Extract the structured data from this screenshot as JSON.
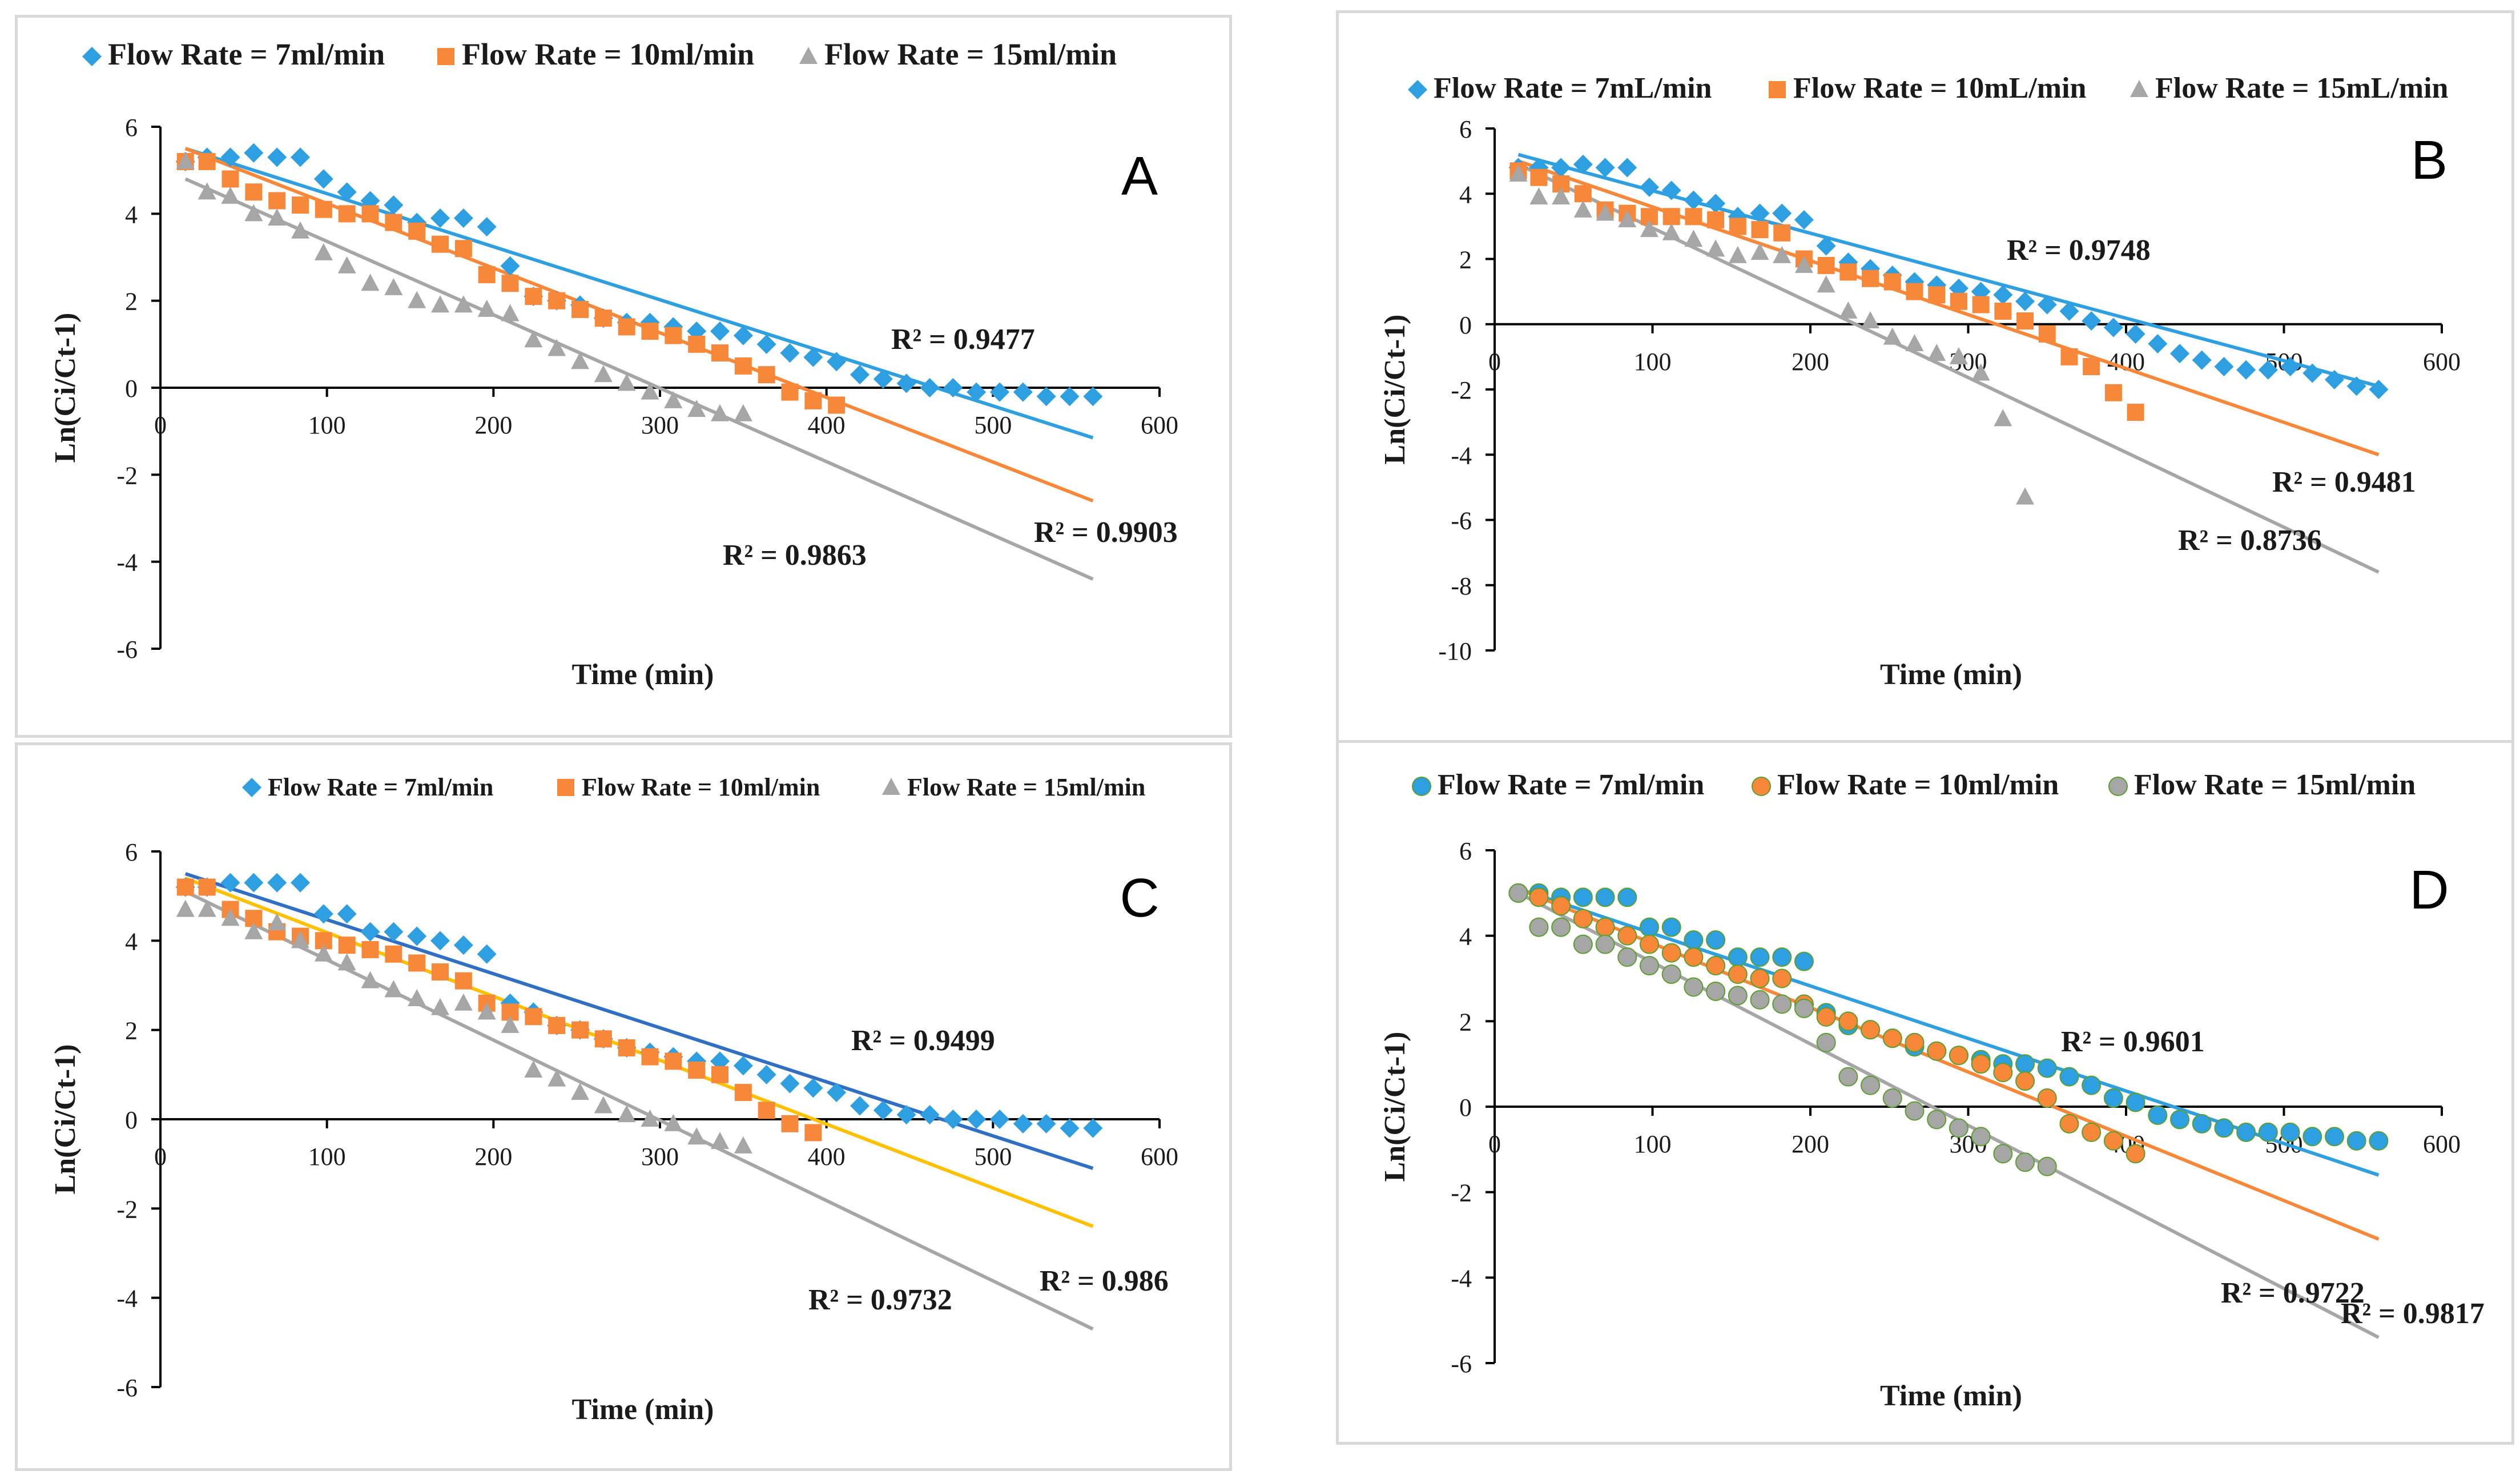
{
  "chart_data": [
    {
      "type": "scatter",
      "panel_label": "A",
      "legend_position": "top",
      "xlabel": "Time (min)",
      "ylabel": "Ln(Ci/Ct-1)",
      "xlim": [
        0,
        600
      ],
      "ylim": [
        -6,
        6
      ],
      "xticks": [
        0,
        100,
        200,
        300,
        400,
        500,
        600
      ],
      "yticks": [
        -6,
        -4,
        -2,
        0,
        2,
        4,
        6
      ],
      "tick_labels_x": [
        "0",
        "100",
        "200",
        "300",
        "400",
        "500",
        "600"
      ],
      "tick_labels_y": [
        "-6",
        "-4",
        "-2",
        "0",
        "2",
        "4",
        "6"
      ],
      "series": [
        {
          "name": "Flow Rate = 7ml/min",
          "marker": "diamond",
          "color": "#2e9fe0",
          "x": [
            15,
            28,
            42,
            56,
            70,
            84,
            98,
            112,
            126,
            140,
            154,
            168,
            182,
            196,
            210,
            224,
            238,
            252,
            266,
            280,
            294,
            308,
            322,
            336,
            350,
            364,
            378,
            392,
            406,
            420,
            434,
            448,
            462,
            476,
            490,
            504,
            518,
            532,
            546,
            560
          ],
          "y": [
            5.2,
            5.3,
            5.3,
            5.4,
            5.3,
            5.3,
            4.8,
            4.5,
            4.3,
            4.2,
            3.8,
            3.9,
            3.9,
            3.7,
            2.8,
            2.1,
            2.0,
            1.9,
            1.6,
            1.5,
            1.5,
            1.4,
            1.3,
            1.3,
            1.2,
            1.0,
            0.8,
            0.7,
            0.6,
            0.3,
            0.2,
            0.1,
            0.0,
            0.0,
            -0.1,
            -0.1,
            -0.1,
            -0.2,
            -0.2,
            -0.2
          ],
          "fit": [
            5.5,
            -1.15
          ],
          "r2_label": "R² = 0.9477"
        },
        {
          "name": "Flow Rate = 10ml/min",
          "marker": "square",
          "color": "#f7883a",
          "x": [
            15,
            28,
            42,
            56,
            70,
            84,
            98,
            112,
            126,
            140,
            154,
            168,
            182,
            196,
            210,
            224,
            238,
            252,
            266,
            280,
            294,
            308,
            322,
            336,
            350,
            364,
            378,
            392,
            406
          ],
          "y": [
            5.2,
            5.2,
            4.8,
            4.5,
            4.3,
            4.2,
            4.1,
            4.0,
            4.0,
            3.8,
            3.6,
            3.3,
            3.2,
            2.6,
            2.4,
            2.1,
            2.0,
            1.8,
            1.6,
            1.4,
            1.3,
            1.2,
            1.0,
            0.8,
            0.5,
            0.3,
            -0.1,
            -0.3,
            -0.4
          ],
          "fit": [
            5.5,
            -2.6
          ],
          "r2_label": "R² = 0.9903"
        },
        {
          "name": "Flow Rate = 15ml/min",
          "marker": "triangle",
          "color": "#a6a6a6",
          "x": [
            15,
            28,
            42,
            56,
            70,
            84,
            98,
            112,
            126,
            140,
            154,
            168,
            182,
            196,
            210,
            224,
            238,
            252,
            266,
            280,
            294,
            308,
            322,
            336,
            350
          ],
          "y": [
            5.2,
            4.5,
            4.4,
            4.0,
            3.9,
            3.6,
            3.1,
            2.8,
            2.4,
            2.3,
            2.0,
            1.9,
            1.9,
            1.8,
            1.7,
            1.1,
            0.9,
            0.6,
            0.3,
            0.1,
            -0.1,
            -0.3,
            -0.5,
            -0.6,
            -0.6
          ],
          "fit": [
            4.8,
            -4.4
          ],
          "r2_label": "R² = 0.9863"
        }
      ]
    },
    {
      "type": "scatter",
      "panel_label": "B",
      "legend_position": "top",
      "xlabel": "Time (min)",
      "ylabel": "Ln(Ci/Ct-1)",
      "xlim": [
        0,
        600
      ],
      "ylim": [
        -10,
        6
      ],
      "xticks": [
        0,
        100,
        200,
        300,
        400,
        500,
        600
      ],
      "yticks": [
        -10,
        -8,
        -6,
        -4,
        -2,
        0,
        2,
        4,
        6
      ],
      "tick_labels_x": [
        "0",
        "100",
        "200",
        "300",
        "400",
        "500",
        "600"
      ],
      "tick_labels_y": [
        "-10",
        "-8",
        "-6",
        "-4",
        "-2",
        "0",
        "2",
        "4",
        "6"
      ],
      "series": [
        {
          "name": "Flow Rate = 7mL/min",
          "marker": "diamond",
          "color": "#2e9fe0",
          "x": [
            15,
            28,
            42,
            56,
            70,
            84,
            98,
            112,
            126,
            140,
            154,
            168,
            182,
            196,
            210,
            224,
            238,
            252,
            266,
            280,
            294,
            308,
            322,
            336,
            350,
            364,
            378,
            392,
            406,
            420,
            434,
            448,
            462,
            476,
            490,
            504,
            518,
            532,
            546,
            560
          ],
          "y": [
            4.8,
            4.8,
            4.8,
            4.9,
            4.8,
            4.8,
            4.2,
            4.1,
            3.8,
            3.7,
            3.3,
            3.4,
            3.4,
            3.2,
            2.4,
            1.9,
            1.7,
            1.5,
            1.3,
            1.2,
            1.1,
            1.0,
            0.9,
            0.7,
            0.6,
            0.4,
            0.1,
            -0.1,
            -0.3,
            -0.6,
            -0.9,
            -1.1,
            -1.3,
            -1.4,
            -1.4,
            -1.3,
            -1.5,
            -1.7,
            -1.9,
            -2.0
          ],
          "fit": [
            5.2,
            -1.9
          ],
          "r2_label": "R² = 0.9748"
        },
        {
          "name": "Flow Rate = 10mL/min",
          "marker": "square",
          "color": "#f7883a",
          "x": [
            15,
            28,
            42,
            56,
            70,
            84,
            98,
            112,
            126,
            140,
            154,
            168,
            182,
            196,
            210,
            224,
            238,
            252,
            266,
            280,
            294,
            308,
            322,
            336,
            350,
            364,
            378,
            392,
            406
          ],
          "y": [
            4.7,
            4.5,
            4.3,
            4.0,
            3.5,
            3.4,
            3.3,
            3.3,
            3.3,
            3.2,
            3.0,
            2.9,
            2.8,
            2.0,
            1.8,
            1.6,
            1.4,
            1.3,
            1.0,
            0.9,
            0.7,
            0.6,
            0.4,
            0.1,
            -0.3,
            -1.0,
            -1.3,
            -2.1,
            -2.7
          ],
          "fit": [
            5.0,
            -4.0
          ],
          "r2_label": "R² = 0.9481"
        },
        {
          "name": "Flow Rate = 15mL/min",
          "marker": "triangle",
          "color": "#a6a6a6",
          "x": [
            15,
            28,
            42,
            56,
            70,
            84,
            98,
            112,
            126,
            140,
            154,
            168,
            182,
            196,
            210,
            224,
            238,
            252,
            266,
            280,
            294,
            308,
            322,
            336
          ],
          "y": [
            4.6,
            3.9,
            3.9,
            3.5,
            3.4,
            3.2,
            2.9,
            2.8,
            2.6,
            2.3,
            2.1,
            2.2,
            2.1,
            1.8,
            1.2,
            0.4,
            0.1,
            -0.4,
            -0.6,
            -0.9,
            -1.0,
            -1.5,
            -2.9,
            -5.3
          ],
          "fit": [
            4.9,
            -7.6
          ],
          "r2_label": "R² = 0.8736"
        }
      ]
    },
    {
      "type": "scatter",
      "panel_label": "C",
      "legend_position": "top",
      "xlabel": "Time (min)",
      "ylabel": "Ln(Ci/Ct-1)",
      "xlim": [
        0,
        600
      ],
      "ylim": [
        -6,
        6
      ],
      "xticks": [
        0,
        100,
        200,
        300,
        400,
        500,
        600
      ],
      "yticks": [
        -6,
        -4,
        -2,
        0,
        2,
        4,
        6
      ],
      "tick_labels_x": [
        "0",
        "100",
        "200",
        "300",
        "400",
        "500",
        "600"
      ],
      "tick_labels_y": [
        "-6",
        "-4",
        "-2",
        "0",
        "2",
        "4",
        "6"
      ],
      "series": [
        {
          "name": "Flow Rate = 7ml/min",
          "marker": "diamond",
          "color": "#2e9fe0",
          "fit_color": "#2f6fc4",
          "x": [
            15,
            28,
            42,
            56,
            70,
            84,
            98,
            112,
            126,
            140,
            154,
            168,
            182,
            196,
            210,
            224,
            238,
            252,
            266,
            280,
            294,
            308,
            322,
            336,
            350,
            364,
            378,
            392,
            406,
            420,
            434,
            448,
            462,
            476,
            490,
            504,
            518,
            532,
            546,
            560
          ],
          "y": [
            5.2,
            5.2,
            5.3,
            5.3,
            5.3,
            5.3,
            4.6,
            4.6,
            4.2,
            4.2,
            4.1,
            4.0,
            3.9,
            3.7,
            2.6,
            2.4,
            2.1,
            2.0,
            1.8,
            1.6,
            1.5,
            1.4,
            1.3,
            1.3,
            1.2,
            1.0,
            0.8,
            0.7,
            0.6,
            0.3,
            0.2,
            0.1,
            0.1,
            0.0,
            0.0,
            0.0,
            -0.1,
            -0.1,
            -0.2,
            -0.2
          ],
          "fit": [
            5.5,
            -1.1
          ],
          "r2_label": "R² = 0.9499"
        },
        {
          "name": "Flow Rate = 10ml/min",
          "marker": "square",
          "color": "#f7883a",
          "fit_color": "#ffc000",
          "x": [
            15,
            28,
            42,
            56,
            70,
            84,
            98,
            112,
            126,
            140,
            154,
            168,
            182,
            196,
            210,
            224,
            238,
            252,
            266,
            280,
            294,
            308,
            322,
            336,
            350,
            364,
            378,
            392
          ],
          "y": [
            5.2,
            5.2,
            4.7,
            4.5,
            4.2,
            4.1,
            4.0,
            3.9,
            3.8,
            3.7,
            3.5,
            3.3,
            3.1,
            2.6,
            2.4,
            2.3,
            2.1,
            2.0,
            1.8,
            1.6,
            1.4,
            1.3,
            1.1,
            1.0,
            0.6,
            0.2,
            -0.1,
            -0.3
          ],
          "fit": [
            5.4,
            -2.4
          ],
          "r2_label": "R² = 0.986"
        },
        {
          "name": "Flow Rate = 15ml/min",
          "marker": "triangle",
          "color": "#a6a6a6",
          "x": [
            15,
            28,
            42,
            56,
            70,
            84,
            98,
            112,
            126,
            140,
            154,
            168,
            182,
            196,
            210,
            224,
            238,
            252,
            266,
            280,
            294,
            308,
            322,
            336,
            350
          ],
          "y": [
            4.7,
            4.7,
            4.5,
            4.2,
            4.4,
            4.0,
            3.7,
            3.5,
            3.1,
            2.9,
            2.7,
            2.5,
            2.6,
            2.4,
            2.1,
            1.1,
            0.9,
            0.6,
            0.3,
            0.1,
            0.0,
            -0.1,
            -0.4,
            -0.5,
            -0.6
          ],
          "fit": [
            5.1,
            -4.7
          ],
          "r2_label": "R² = 0.9732"
        }
      ]
    },
    {
      "type": "scatter",
      "panel_label": "D",
      "legend_position": "top",
      "xlabel": "Time (min)",
      "ylabel": "Ln(Ci/Ct-1)",
      "xlim": [
        0,
        600
      ],
      "ylim": [
        -6,
        6
      ],
      "xticks": [
        0,
        100,
        200,
        300,
        400,
        500,
        600
      ],
      "yticks": [
        -6,
        -4,
        -2,
        0,
        2,
        4,
        6
      ],
      "tick_labels_x": [
        "0",
        "100",
        "200",
        "300",
        "400",
        "500",
        "600"
      ],
      "tick_labels_y": [
        "-6",
        "-4",
        "-2",
        "0",
        "2",
        "4",
        "6"
      ],
      "series": [
        {
          "name": "Flow Rate = 7ml/min",
          "marker": "circle",
          "color": "#2e9fe0",
          "x": [
            15,
            28,
            42,
            56,
            70,
            84,
            98,
            112,
            126,
            140,
            154,
            168,
            182,
            196,
            210,
            224,
            238,
            252,
            266,
            280,
            294,
            308,
            322,
            336,
            350,
            364,
            378,
            392,
            406,
            420,
            434,
            448,
            462,
            476,
            490,
            504,
            518,
            532,
            546,
            560
          ],
          "y": [
            5.0,
            5.0,
            4.9,
            4.9,
            4.9,
            4.9,
            4.2,
            4.2,
            3.9,
            3.9,
            3.5,
            3.5,
            3.5,
            3.4,
            2.2,
            1.9,
            1.8,
            1.6,
            1.4,
            1.3,
            1.2,
            1.1,
            1.0,
            1.0,
            0.9,
            0.7,
            0.5,
            0.2,
            0.1,
            -0.2,
            -0.3,
            -0.4,
            -0.5,
            -0.6,
            -0.6,
            -0.6,
            -0.7,
            -0.7,
            -0.8,
            -0.8
          ],
          "fit": [
            5.1,
            -1.6
          ],
          "r2_label": "R² = 0.9601"
        },
        {
          "name": "Flow Rate = 10ml/min",
          "marker": "circle",
          "color": "#f7883a",
          "x": [
            15,
            28,
            42,
            56,
            70,
            84,
            98,
            112,
            126,
            140,
            154,
            168,
            182,
            196,
            210,
            224,
            238,
            252,
            266,
            280,
            294,
            308,
            322,
            336,
            350,
            364,
            378,
            392,
            406
          ],
          "y": [
            5.0,
            4.9,
            4.7,
            4.4,
            4.2,
            4.0,
            3.8,
            3.6,
            3.5,
            3.3,
            3.1,
            3.0,
            3.0,
            2.4,
            2.1,
            2.0,
            1.8,
            1.6,
            1.5,
            1.3,
            1.2,
            1.0,
            0.8,
            0.6,
            0.2,
            -0.4,
            -0.6,
            -0.8,
            -1.1
          ],
          "fit": [
            5.1,
            -3.1
          ],
          "r2_label": "R² = 0.9817"
        },
        {
          "name": "Flow Rate = 15ml/min",
          "marker": "circle",
          "color": "#a6a6a6",
          "x": [
            15,
            28,
            42,
            56,
            70,
            84,
            98,
            112,
            126,
            140,
            154,
            168,
            182,
            196,
            210,
            224,
            238,
            252,
            266,
            280,
            294,
            308,
            322,
            336,
            350
          ],
          "y": [
            5.0,
            4.2,
            4.2,
            3.8,
            3.8,
            3.5,
            3.3,
            3.1,
            2.8,
            2.7,
            2.6,
            2.5,
            2.4,
            2.3,
            1.5,
            0.7,
            0.5,
            0.2,
            -0.1,
            -0.3,
            -0.5,
            -0.7,
            -1.1,
            -1.3,
            -1.4
          ],
          "fit": [
            5.0,
            -5.4
          ],
          "r2_label": "R² = 0.9722"
        }
      ]
    }
  ]
}
